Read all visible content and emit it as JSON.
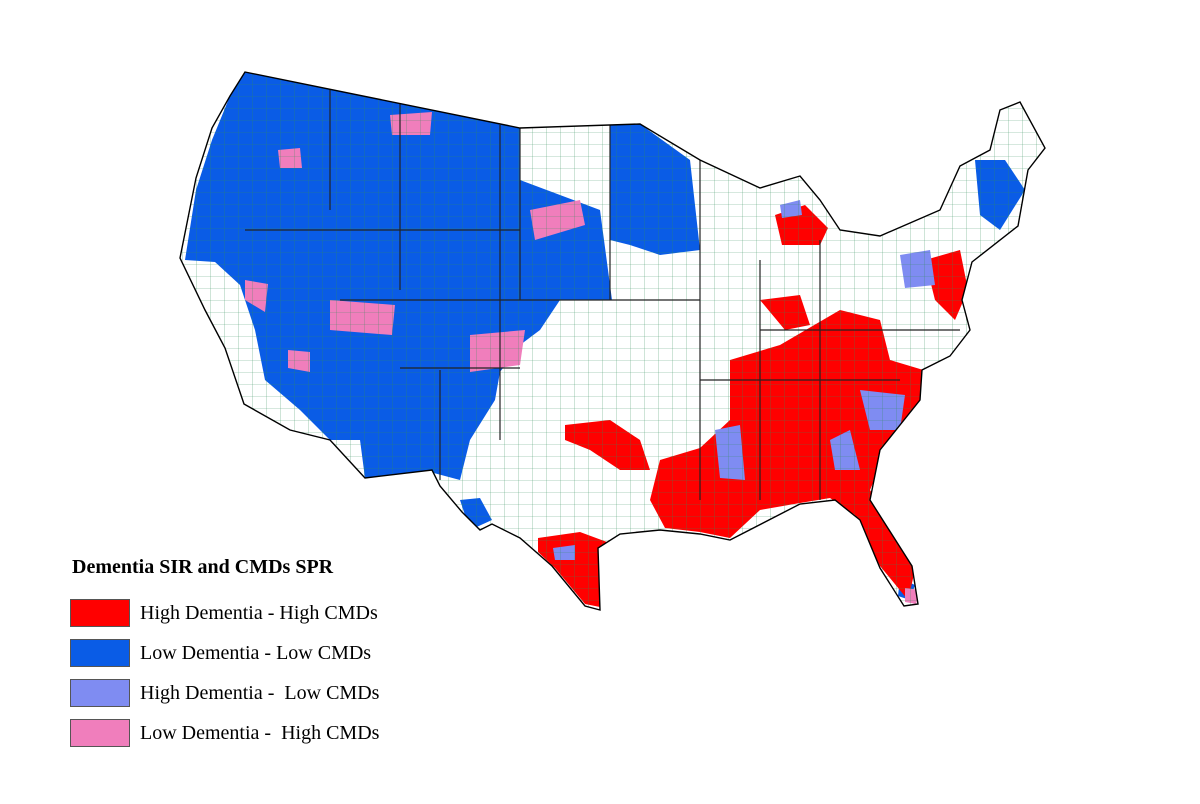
{
  "legend": {
    "title": "Dementia SIR and CMDs SPR",
    "items": [
      {
        "label": "High Dementia - High CMDs",
        "color": "#ff0000"
      },
      {
        "label": "Low Dementia - Low CMDs",
        "color": "#0a5ce6"
      },
      {
        "label": "High Dementia -  Low CMDs",
        "color": "#7f8cf2"
      },
      {
        "label": "Low Dementia -  High CMDs",
        "color": "#f07ebc"
      }
    ]
  },
  "colors": {
    "no_category": "#ffffff",
    "county_border": "#2e8b57",
    "state_border": "#000000"
  }
}
